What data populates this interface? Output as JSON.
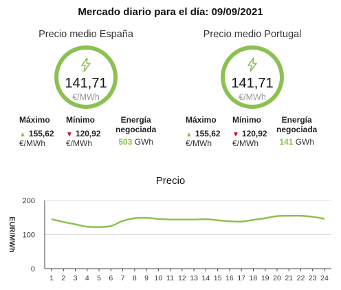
{
  "title": "Mercado diario para el día: 09/09/2021",
  "markets": [
    {
      "label": "Precio medio España",
      "price": "141,71",
      "unit": "€/MWh",
      "max_label": "Máximo",
      "max_value": "155,62",
      "min_label": "Mínimo",
      "min_value": "120,92",
      "stat_unit": "€/MWh",
      "energy_label_1": "Energía",
      "energy_label_2": "negociada",
      "energy_value": "503",
      "energy_unit": "GWh"
    },
    {
      "label": "Precio medio Portugal",
      "price": "141,71",
      "unit": "€/MWh",
      "max_label": "Máximo",
      "max_value": "155,62",
      "min_label": "Mínimo",
      "min_value": "120,92",
      "stat_unit": "€/MWh",
      "energy_label_1": "Energía",
      "energy_label_2": "negociada",
      "energy_value": "141",
      "energy_unit": "GWh"
    }
  ],
  "colors": {
    "accent": "#8cc152",
    "down": "#d6001c"
  },
  "icons": {
    "price": "lightning-bolt-icon",
    "up": "triangle-up-icon",
    "down": "triangle-down-icon"
  },
  "chart_data": {
    "type": "line",
    "title": "Precio",
    "ylabel": "EUR/MWh",
    "xlabel": "",
    "ylim": [
      0,
      200
    ],
    "yticks": [
      0,
      100,
      200
    ],
    "categories": [
      "1",
      "2",
      "3",
      "4",
      "5",
      "6",
      "7",
      "8",
      "9",
      "10",
      "11",
      "12",
      "13",
      "14",
      "15",
      "16",
      "17",
      "18",
      "19",
      "20",
      "21",
      "22",
      "23",
      "24"
    ],
    "series": [
      {
        "values": [
          145,
          137,
          130,
          123,
          122,
          125,
          140,
          148,
          149,
          146,
          144,
          144,
          144,
          145,
          142,
          139,
          138,
          143,
          148,
          154,
          155,
          155,
          152,
          146
        ]
      }
    ],
    "grid": "horizontal",
    "line_color": "#8cc152"
  }
}
